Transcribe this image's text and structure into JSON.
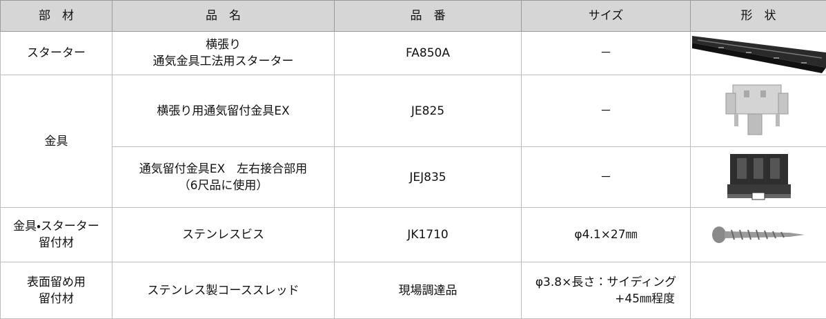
{
  "table": {
    "header": [
      "部　材",
      "品　名",
      "品　番",
      "サイズ",
      "形　状"
    ],
    "rows": [
      [
        [
          "スターター"
        ],
        [
          "横張り",
          "通気金具工法用スターター"
        ],
        [
          "FA850A"
        ],
        [
          "－"
        ]
      ],
      [
        [
          "金具"
        ],
        [
          "横張り用通気留付金具EX"
        ],
        [
          "JE825"
        ],
        [
          "－"
        ]
      ],
      [
        [
          "通気留付金具EX　左右接合部用",
          "（6尺品に使用）"
        ],
        [
          "JEJ835"
        ],
        [
          "－"
        ]
      ],
      [
        [
          "金具・スターター",
          "留付材"
        ],
        [
          "ステンレスビス"
        ],
        [
          "JK1710"
        ],
        [
          "φ4.1×27㎜"
        ]
      ],
      [
        [
          "表面留め用",
          "留付材"
        ],
        [
          "ステンレス製コーススレッド"
        ],
        [
          "現場調達品"
        ],
        [
          "φ3.8×長さ：サイディング",
          "+45㎜程度"
        ]
      ]
    ]
  }
}
